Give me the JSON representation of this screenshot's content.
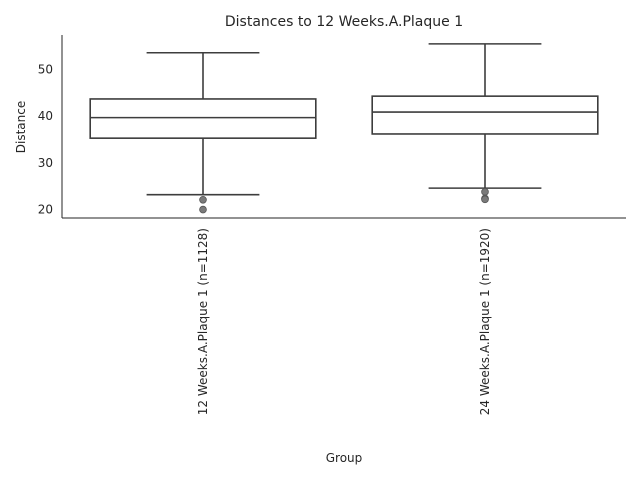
{
  "chart_data": {
    "type": "box",
    "title": "Distances to 12 Weeks.A.Plaque 1",
    "xlabel": "Group",
    "ylabel": "Distance",
    "ylim": [
      18.2,
      57.4
    ],
    "yticks": [
      20,
      30,
      40,
      50
    ],
    "grid": false,
    "categories": [
      "12 Weeks.A.Plaque 1 (n=1128)",
      "24 Weeks.A.Plaque 1 (n=1920)"
    ],
    "boxes": [
      {
        "whisker_low": 23.2,
        "q1": 35.3,
        "median": 39.7,
        "q3": 43.7,
        "whisker_high": 53.6,
        "outliers": [
          22.1,
          20.0
        ]
      },
      {
        "whisker_low": 24.6,
        "q1": 36.2,
        "median": 40.9,
        "q3": 44.3,
        "whisker_high": 55.5,
        "outliers": [
          23.8,
          22.4,
          22.2
        ]
      }
    ]
  }
}
